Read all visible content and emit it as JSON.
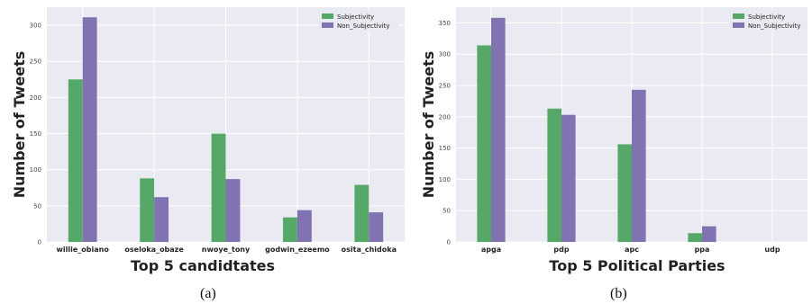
{
  "figure": {
    "captions": [
      "(a)",
      "(b)"
    ]
  },
  "chart_data": [
    {
      "type": "bar",
      "title": "",
      "xlabel": "Top 5 candidtates",
      "ylabel": "Number of Tweets",
      "categories": [
        "willie_obiano",
        "oseloka_obaze",
        "nwoye_tony",
        "godwin_ezeemo",
        "osita_chidoka"
      ],
      "series": [
        {
          "name": "Subjectivity",
          "values": [
            225,
            88,
            150,
            34,
            79
          ]
        },
        {
          "name": "Non_Subjectivity",
          "values": [
            311,
            62,
            87,
            44,
            41
          ]
        }
      ],
      "ylim": [
        0,
        325
      ],
      "yticks": [
        0,
        50,
        100,
        150,
        200,
        250,
        300
      ],
      "grid": true,
      "legend_position": "top-right"
    },
    {
      "type": "bar",
      "title": "",
      "xlabel": "Top 5 Political Parties",
      "ylabel": "Number of Tweets",
      "categories": [
        "apga",
        "pdp",
        "apc",
        "ppa",
        "udp"
      ],
      "series": [
        {
          "name": "Subjectivity",
          "values": [
            314,
            213,
            156,
            14,
            0
          ]
        },
        {
          "name": "Non_Subjectivity",
          "values": [
            358,
            203,
            243,
            25,
            0
          ]
        }
      ],
      "ylim": [
        0,
        375
      ],
      "yticks": [
        0,
        50,
        100,
        150,
        200,
        250,
        300,
        350
      ],
      "grid": true,
      "legend_position": "top-right"
    }
  ],
  "colors": {
    "subjectivity": "#55a868",
    "non_subjectivity": "#8172b2",
    "plot_background": "#eaeaf2",
    "grid": "#ffffff"
  }
}
